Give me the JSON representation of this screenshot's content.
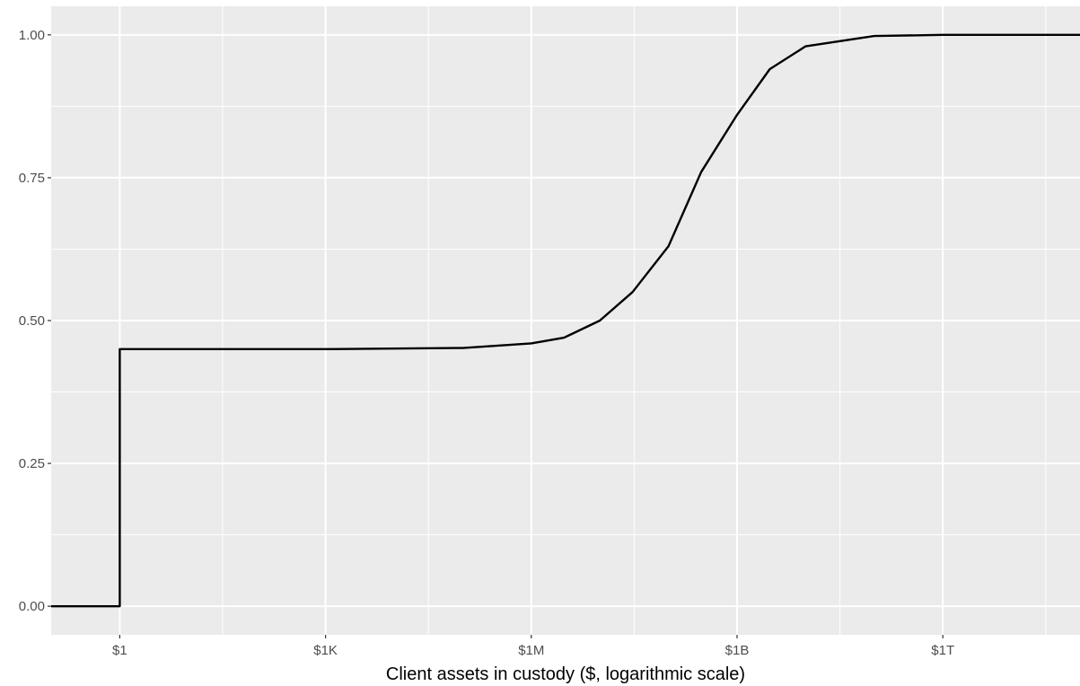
{
  "chart_data": {
    "type": "line",
    "title": "",
    "xlabel": "Client assets in custody ($, logarithmic scale)",
    "ylabel": "",
    "x_scale": "log10",
    "x_unit": "$",
    "xlim": [
      0.1,
      100000000000000.0
    ],
    "ylim": [
      -0.05,
      1.05
    ],
    "grid": true,
    "legend": "none",
    "x_ticks": [
      {
        "value": 1,
        "label": "$1"
      },
      {
        "value": 1000,
        "label": "$1K"
      },
      {
        "value": 1000000,
        "label": "$1M"
      },
      {
        "value": 1000000000,
        "label": "$1B"
      },
      {
        "value": 1000000000000,
        "label": "$1T"
      }
    ],
    "y_ticks": [
      {
        "value": 0,
        "label": "0.00"
      },
      {
        "value": 0.25,
        "label": "0.25"
      },
      {
        "value": 0.5,
        "label": "0.50"
      },
      {
        "value": 0.75,
        "label": "0.75"
      },
      {
        "value": 1,
        "label": "1.00"
      }
    ],
    "series": [
      {
        "color": "#000000",
        "points": [
          {
            "x": 0.1,
            "y": 0
          },
          {
            "x": 1,
            "y": 0
          },
          {
            "x": 1,
            "y": 0.45
          },
          {
            "x": 1000,
            "y": 0.45
          },
          {
            "x": 100000,
            "y": 0.452
          },
          {
            "x": 1000000,
            "y": 0.46
          },
          {
            "x": 3000000,
            "y": 0.47
          },
          {
            "x": 10000000,
            "y": 0.5
          },
          {
            "x": 30000000,
            "y": 0.55
          },
          {
            "x": 100000000,
            "y": 0.63
          },
          {
            "x": 300000000,
            "y": 0.76
          },
          {
            "x": 1000000000,
            "y": 0.86
          },
          {
            "x": 3000000000,
            "y": 0.94
          },
          {
            "x": 10000000000,
            "y": 0.98
          },
          {
            "x": 100000000000,
            "y": 0.998
          },
          {
            "x": 1000000000000,
            "y": 1
          },
          {
            "x": 100000000000000,
            "y": 1
          }
        ]
      }
    ],
    "colors": {
      "panel_background": "#ebebeb",
      "grid": "#ffffff",
      "line": "#000000",
      "tick_text": "#4d4d4d",
      "axis_text": "#000000"
    }
  }
}
